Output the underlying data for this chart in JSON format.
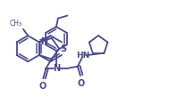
{
  "bg_color": "#ffffff",
  "line_color": "#4a4a8a",
  "lw": 1.3,
  "figsize": [
    2.08,
    1.26
  ],
  "dpi": 100,
  "xlim": [
    0,
    10
  ],
  "ylim": [
    0,
    6
  ],
  "methyl_label": "CH₃",
  "N_label": "N",
  "S_label": "S",
  "O1_label": "O",
  "N2_label": "N",
  "HN_label": "HN",
  "O2_label": "O"
}
